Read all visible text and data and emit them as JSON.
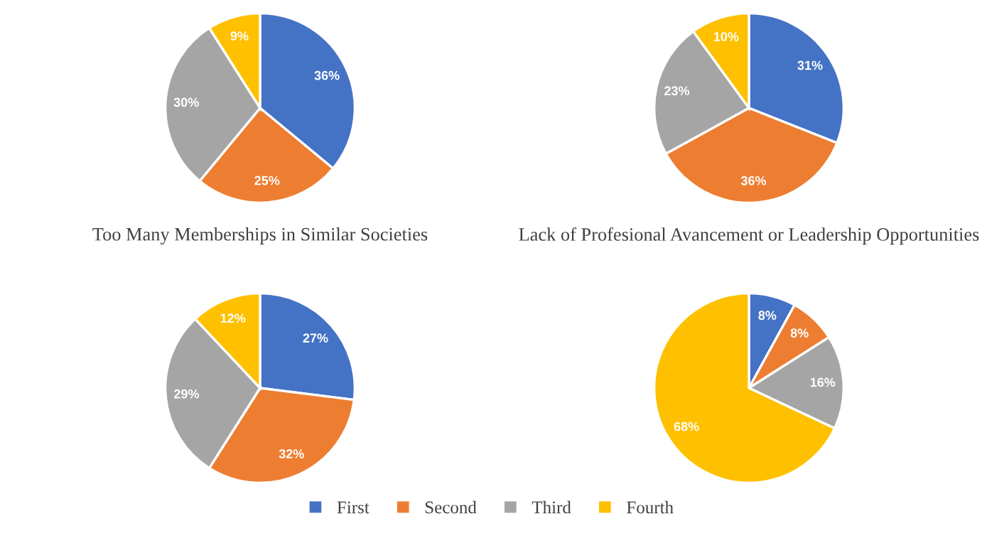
{
  "chart_data": [
    {
      "type": "pie",
      "categories": [
        "First",
        "Second",
        "Third",
        "Fourth"
      ],
      "values": [
        36,
        25,
        30,
        9
      ],
      "colors": [
        "#4472c4",
        "#ed7d31",
        "#a5a5a5",
        "#ffc000"
      ],
      "value_labels": [
        "36%",
        "25%",
        "30%",
        "9%"
      ],
      "legend": "bottom"
    },
    {
      "type": "pie",
      "categories": [
        null,
        null,
        null,
        null
      ],
      "values": [
        31,
        36,
        23,
        10
      ],
      "colors": [
        "#4472c4",
        "#ed7d31",
        "#a5a5a5",
        "#ffc000"
      ],
      "value_labels": [
        "31%",
        "36%",
        "23%",
        "10%"
      ]
    },
    {
      "type": "pie",
      "title": "Too Many Memberships in Similar Societies",
      "categories": [
        null,
        null,
        null,
        null
      ],
      "values": [
        27,
        32,
        29,
        12
      ],
      "colors": [
        "#4472c4",
        "#ed7d31",
        "#a5a5a5",
        "#ffc000"
      ],
      "value_labels": [
        "27%",
        "32%",
        "29%",
        "12%"
      ]
    },
    {
      "type": "pie",
      "title": "Lack of Profesional Avancement or Leadership Opportunities",
      "categories": [
        null,
        null,
        null,
        null
      ],
      "values": [
        8,
        8,
        16,
        68
      ],
      "colors": [
        "#4472c4",
        "#ed7d31",
        "#a5a5a5",
        "#ffc000"
      ],
      "value_labels": [
        "8%",
        "8%",
        "16%",
        "68%"
      ]
    }
  ]
}
